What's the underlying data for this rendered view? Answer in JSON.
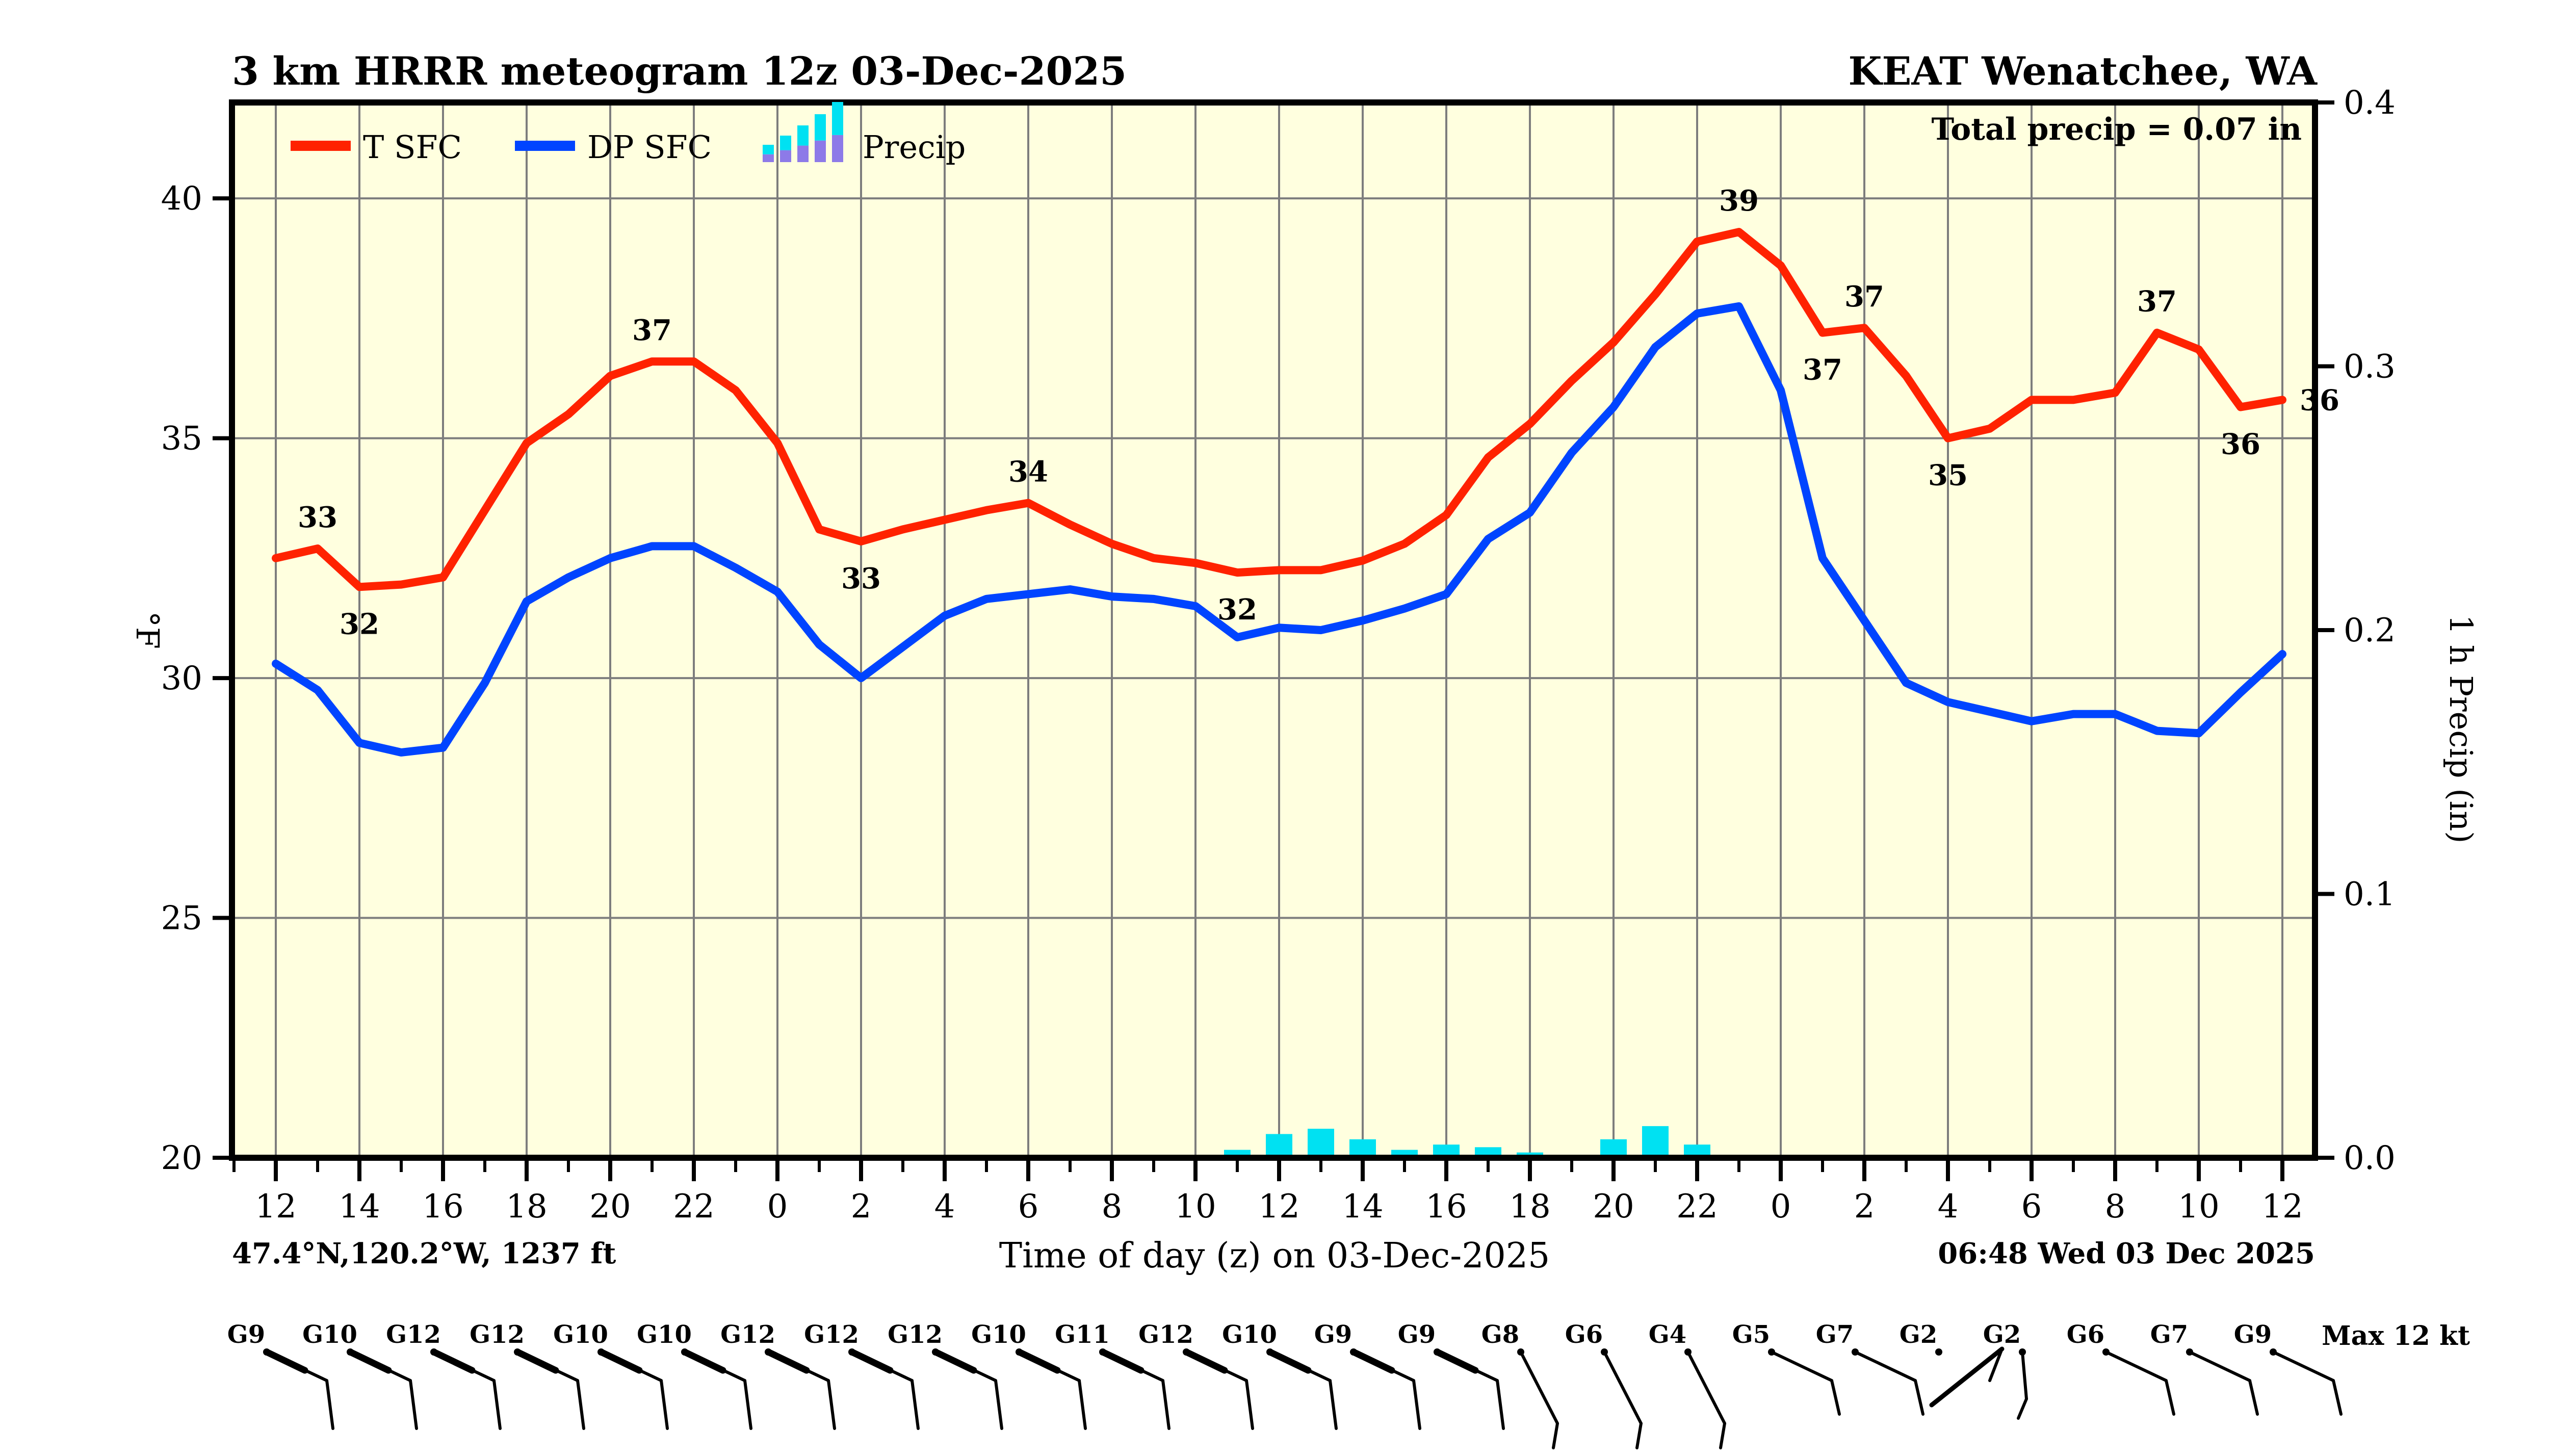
{
  "header": {
    "title": "3 km HRRR meteogram 12z 03-Dec-2025",
    "station": "KEAT Wenatchee, WA",
    "total_precip": "Total precip = 0.07 in"
  },
  "legend": {
    "t_label": "T SFC",
    "dp_label": "DP SFC",
    "precip_label": "Precip"
  },
  "axes": {
    "left_label": "°F",
    "right_label": "1 h Precip (in)",
    "left_ticks": [
      40,
      35,
      30,
      25,
      20
    ],
    "right_ticks": [
      "0.4",
      "0.3",
      "0.2",
      "0.1",
      "0.0"
    ],
    "x_tick_labels": [
      "12",
      "14",
      "16",
      "18",
      "20",
      "22",
      "0",
      "2",
      "4",
      "6",
      "8",
      "10",
      "12",
      "14",
      "16",
      "18",
      "20",
      "22",
      "0",
      "2",
      "4",
      "6",
      "8",
      "10",
      "12"
    ]
  },
  "footer": {
    "location": "47.4°N,120.2°W, 1237 ft",
    "xaxis_title": "Time of day (z) on 03-Dec-2025",
    "timestamp": "06:48 Wed 03 Dec 2025",
    "max_wind": "Max 12 kt"
  },
  "colors": {
    "plot_bg": "#ffffdf",
    "temp": "#ff2200",
    "dewpoint": "#0044ff",
    "precip": "#00e1f2",
    "precip_legend_bottom": "#8d7ae8",
    "grid": "#7d7d7d",
    "frame": "#000000"
  },
  "chart_data": {
    "type": "line+bar",
    "title": "3 km HRRR meteogram 12z 03-Dec-2025",
    "x_axis": {
      "label": "Time of day (z) on 03-Dec-2025",
      "hours_after_12z": [
        0,
        1,
        2,
        3,
        4,
        5,
        6,
        7,
        8,
        9,
        10,
        11,
        12,
        13,
        14,
        15,
        16,
        17,
        18,
        19,
        20,
        21,
        22,
        23,
        24,
        25,
        26,
        27,
        28,
        29,
        30,
        31,
        32,
        33,
        34,
        35,
        36,
        37,
        38,
        39,
        40,
        41,
        42,
        43,
        44,
        45,
        46,
        47,
        48
      ],
      "tick_every_hours": 2,
      "tick_labels": [
        "12",
        "14",
        "16",
        "18",
        "20",
        "22",
        "0",
        "2",
        "4",
        "6",
        "8",
        "10",
        "12",
        "14",
        "16",
        "18",
        "20",
        "22",
        "0",
        "2",
        "4",
        "6",
        "8",
        "10",
        "12"
      ]
    },
    "temp_axis": {
      "label": "°F",
      "ticks": [
        20,
        25,
        30,
        35,
        40
      ],
      "min": 20,
      "max": 42
    },
    "precip_axis": {
      "label": "1 h Precip (in)",
      "ticks": [
        0.0,
        0.1,
        0.2,
        0.3,
        0.4
      ],
      "min": 0,
      "max": 0.4
    },
    "grid": "on",
    "legend_position": "top-left-inside",
    "series": [
      {
        "name": "T SFC",
        "unit": "°F",
        "values": [
          32.5,
          32.7,
          31.9,
          31.95,
          32.1,
          33.5,
          34.9,
          35.5,
          36.3,
          36.6,
          36.6,
          36.0,
          34.9,
          33.1,
          32.85,
          33.1,
          33.3,
          33.5,
          33.65,
          33.2,
          32.8,
          32.5,
          32.4,
          32.2,
          32.25,
          32.25,
          32.45,
          32.8,
          33.4,
          34.6,
          35.3,
          36.2,
          37.0,
          38.0,
          39.1,
          39.3,
          38.6,
          37.2,
          37.3,
          36.3,
          35.0,
          35.2,
          35.8,
          35.8,
          35.95,
          37.2,
          36.85,
          35.65,
          35.8
        ]
      },
      {
        "name": "DP SFC",
        "unit": "°F",
        "values": [
          30.3,
          29.75,
          28.65,
          28.45,
          28.55,
          29.9,
          31.6,
          32.1,
          32.5,
          32.75,
          32.75,
          32.3,
          31.8,
          30.7,
          30.0,
          30.65,
          31.3,
          31.65,
          31.75,
          31.85,
          31.7,
          31.65,
          31.5,
          30.85,
          31.05,
          31.0,
          31.2,
          31.45,
          31.75,
          32.9,
          33.45,
          34.7,
          35.65,
          36.9,
          37.6,
          37.75,
          36.0,
          32.5,
          31.2,
          29.9,
          29.5,
          29.3,
          29.1,
          29.25,
          29.25,
          28.9,
          28.85,
          29.7,
          30.5
        ]
      }
    ],
    "temp_point_labels": [
      {
        "hour": 1,
        "text": "33",
        "placement": "above"
      },
      {
        "hour": 2,
        "text": "32",
        "placement": "below"
      },
      {
        "hour": 9,
        "text": "37",
        "placement": "above"
      },
      {
        "hour": 14,
        "text": "33",
        "placement": "below"
      },
      {
        "hour": 18,
        "text": "34",
        "placement": "above"
      },
      {
        "hour": 23,
        "text": "32",
        "placement": "below"
      },
      {
        "hour": 35,
        "text": "39",
        "placement": "above"
      },
      {
        "hour": 37,
        "text": "37",
        "placement": "below"
      },
      {
        "hour": 38,
        "text": "37",
        "placement": "above"
      },
      {
        "hour": 40,
        "text": "35",
        "placement": "below"
      },
      {
        "hour": 45,
        "text": "37",
        "placement": "above"
      },
      {
        "hour": 47,
        "text": "36",
        "placement": "below"
      },
      {
        "hour": 48,
        "text": "36",
        "placement": "right"
      }
    ],
    "precip_bars": {
      "unit": "in",
      "hours": [
        23,
        24,
        25,
        26,
        27,
        28,
        29,
        30,
        31,
        32,
        33,
        34,
        35,
        36
      ],
      "values": [
        0.003,
        0.009,
        0.011,
        0.007,
        0.003,
        0.005,
        0.004,
        0.002,
        0.001,
        0.007,
        0.012,
        0.005,
        0.001,
        0.001
      ],
      "total_label": "Total precip = 0.07 in"
    },
    "wind_barbs": [
      {
        "hour": 0,
        "gust": "G9",
        "style": "nwd"
      },
      {
        "hour": 2,
        "gust": "G10",
        "style": "nwd"
      },
      {
        "hour": 4,
        "gust": "G12",
        "style": "nwd"
      },
      {
        "hour": 6,
        "gust": "G12",
        "style": "nwd"
      },
      {
        "hour": 8,
        "gust": "G10",
        "style": "nwd"
      },
      {
        "hour": 10,
        "gust": "G10",
        "style": "nwd"
      },
      {
        "hour": 12,
        "gust": "G12",
        "style": "nwd"
      },
      {
        "hour": 14,
        "gust": "G12",
        "style": "nwd"
      },
      {
        "hour": 16,
        "gust": "G12",
        "style": "nwd"
      },
      {
        "hour": 18,
        "gust": "G10",
        "style": "nwd"
      },
      {
        "hour": 20,
        "gust": "G11",
        "style": "nwd"
      },
      {
        "hour": 22,
        "gust": "G12",
        "style": "nwd"
      },
      {
        "hour": 24,
        "gust": "G10",
        "style": "nwd"
      },
      {
        "hour": 26,
        "gust": "G9",
        "style": "nwd"
      },
      {
        "hour": 28,
        "gust": "G9",
        "style": "nwd"
      },
      {
        "hour": 30,
        "gust": "G8",
        "style": "nwl"
      },
      {
        "hour": 32,
        "gust": "G6",
        "style": "nwl"
      },
      {
        "hour": 34,
        "gust": "G4",
        "style": "nwl"
      },
      {
        "hour": 36,
        "gust": "G5",
        "style": "nw"
      },
      {
        "hour": 38,
        "gust": "G7",
        "style": "nw"
      },
      {
        "hour": 40,
        "gust": "G2",
        "style": "ne"
      },
      {
        "hour": 42,
        "gust": "G2",
        "style": "s"
      },
      {
        "hour": 44,
        "gust": "G6",
        "style": "nw"
      },
      {
        "hour": 46,
        "gust": "G7",
        "style": "nw"
      },
      {
        "hour": 48,
        "gust": "G9",
        "style": "nw"
      }
    ]
  }
}
